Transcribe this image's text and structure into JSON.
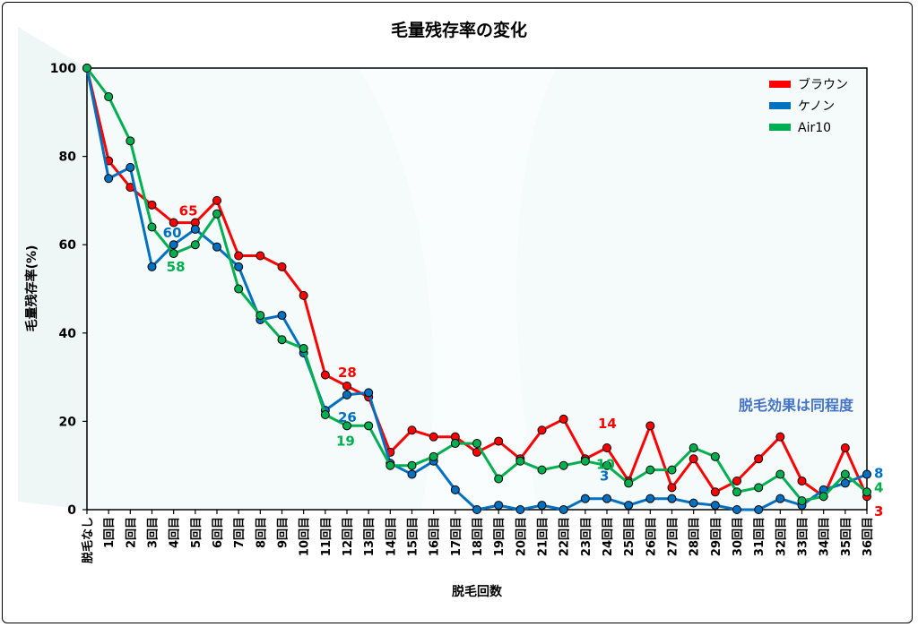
{
  "chart_data": {
    "type": "line",
    "title": "毛量残存率の変化",
    "xlabel": "脱毛回数",
    "ylabel": "毛量残存率(%)",
    "ylim": [
      0,
      100
    ],
    "yticks": [
      0,
      20,
      40,
      60,
      80,
      100
    ],
    "categories": [
      "脱毛なし",
      "1回目",
      "2回目",
      "3回目",
      "4回目",
      "5回目",
      "6回目",
      "7回目",
      "8回目",
      "9回目",
      "10回目",
      "11回目",
      "12回目",
      "13回目",
      "14回目",
      "15回目",
      "16回目",
      "17回目",
      "18回目",
      "19回目",
      "20回目",
      "21回目",
      "22回目",
      "23回目",
      "24回目",
      "25回目",
      "26回目",
      "27回目",
      "28回目",
      "29回目",
      "30回目",
      "31回目",
      "32回目",
      "33回目",
      "34回目",
      "35回目",
      "36回目"
    ],
    "legend_position": "top-right",
    "grid": false,
    "series": [
      {
        "name": "ブラウン",
        "color": "#ff0000",
        "values": [
          100,
          79,
          73,
          69,
          65,
          65,
          70,
          57.5,
          57.5,
          55,
          48.5,
          30.5,
          28,
          25.5,
          13,
          18,
          16.5,
          16.5,
          13,
          15.5,
          11.5,
          18,
          20.5,
          11.5,
          14,
          6.5,
          19,
          5,
          11.5,
          4,
          6.5,
          11.5,
          16.5,
          6.5,
          3,
          14,
          3
        ]
      },
      {
        "name": "ケノン",
        "color": "#0070c0",
        "values": [
          100,
          75,
          77.5,
          55,
          60,
          63.5,
          59.5,
          55,
          43,
          44,
          35.5,
          22.5,
          26,
          26.5,
          10.5,
          8,
          11,
          4.5,
          0,
          1,
          0,
          1,
          0,
          2.5,
          2.5,
          1,
          2.5,
          2.5,
          1.5,
          1,
          0,
          0,
          2.5,
          1,
          4.5,
          6,
          8
        ]
      },
      {
        "name": "Air10",
        "color": "#00b050",
        "values": [
          100,
          93.5,
          83.5,
          64,
          58,
          60,
          67,
          50,
          44,
          38.5,
          36.5,
          21.5,
          19,
          19,
          10,
          10,
          12,
          15,
          15,
          7,
          11,
          9,
          10,
          11,
          10,
          6,
          9,
          9,
          14,
          12,
          4,
          5,
          8,
          2,
          3,
          8,
          4
        ]
      }
    ],
    "annotations": [
      {
        "series": "ブラウン",
        "index": 4,
        "text": "65"
      },
      {
        "series": "ケノン",
        "index": 4,
        "text": "60"
      },
      {
        "series": "Air10",
        "index": 4,
        "text": "58"
      },
      {
        "series": "ブラウン",
        "index": 12,
        "text": "28"
      },
      {
        "series": "ケノン",
        "index": 12,
        "text": "26"
      },
      {
        "series": "Air10",
        "index": 12,
        "text": "19"
      },
      {
        "series": "ブラウン",
        "index": 24,
        "text": "14"
      },
      {
        "series": "ケノン",
        "index": 24,
        "text": "3"
      },
      {
        "series": "Air10",
        "index": 24,
        "text": "10"
      },
      {
        "series": "ケノン",
        "index": 36,
        "text": "8"
      },
      {
        "series": "Air10",
        "index": 36,
        "text": "4"
      },
      {
        "series": "ブラウン",
        "index": 36,
        "text": "3"
      }
    ],
    "note": "脱毛効果は同程度"
  }
}
